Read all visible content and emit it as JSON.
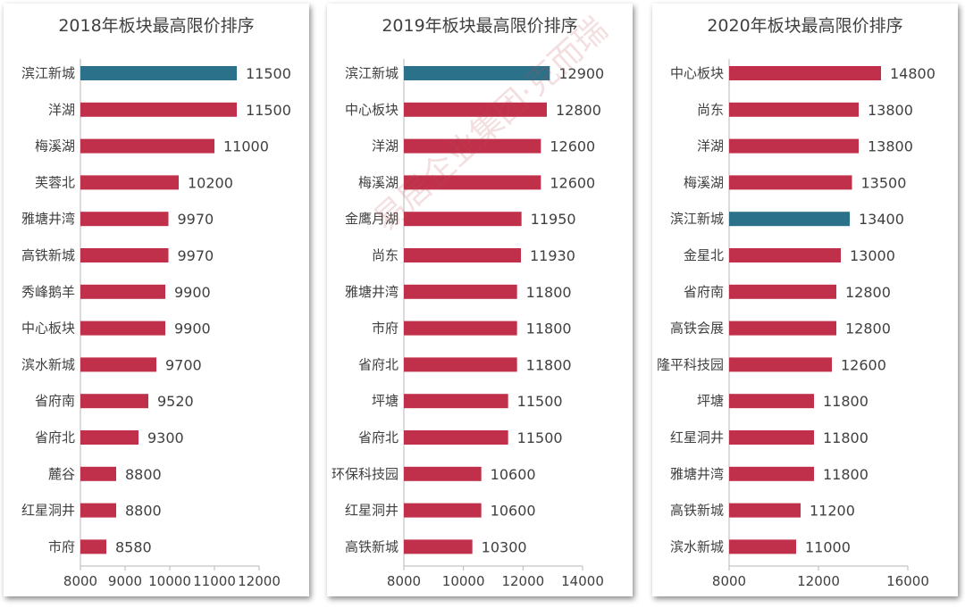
{
  "watermark": "易居企业集团·克而瑞",
  "colors": {
    "bar": "#c0304a",
    "highlight": "#2b7189",
    "axis": "#b7b7b7",
    "text": "#404040"
  },
  "chart_data": [
    {
      "type": "bar",
      "orientation": "horizontal",
      "title": "2018年板块最高限价排序",
      "categories": [
        "滨江新城",
        "洋湖",
        "梅溪湖",
        "芙蓉北",
        "雅塘井湾",
        "高铁新城",
        "秀峰鹅羊",
        "中心板块",
        "滨水新城",
        "省府南",
        "省府北",
        "麓谷",
        "红星洞井",
        "市府"
      ],
      "values": [
        11500,
        11500,
        11000,
        10200,
        9970,
        9970,
        9900,
        9900,
        9700,
        9520,
        9300,
        8800,
        8800,
        8580
      ],
      "highlight": [
        "滨江新城"
      ],
      "xlim": [
        8000,
        12000
      ],
      "xticks": [
        8000,
        9000,
        10000,
        11000,
        12000
      ]
    },
    {
      "type": "bar",
      "orientation": "horizontal",
      "title": "2019年板块最高限价排序",
      "categories": [
        "滨江新城",
        "中心板块",
        "洋湖",
        "梅溪湖",
        "金鹰月湖",
        "尚东",
        "雅塘井湾",
        "市府",
        "省府北",
        "坪塘",
        "省府北",
        "环保科技园",
        "红星洞井",
        "高铁新城"
      ],
      "values": [
        12900,
        12800,
        12600,
        12600,
        11950,
        11930,
        11800,
        11800,
        11800,
        11500,
        11500,
        10600,
        10600,
        10300
      ],
      "highlight": [
        "滨江新城"
      ],
      "xlim": [
        8000,
        14000
      ],
      "xticks": [
        8000,
        10000,
        12000,
        14000
      ]
    },
    {
      "type": "bar",
      "orientation": "horizontal",
      "title": "2020年板块最高限价排序",
      "categories": [
        "中心板块",
        "尚东",
        "洋湖",
        "梅溪湖",
        "滨江新城",
        "金星北",
        "省府南",
        "高铁会展",
        "隆平科技园",
        "坪塘",
        "红星洞井",
        "雅塘井湾",
        "高铁新城",
        "滨水新城"
      ],
      "values": [
        14800,
        13800,
        13800,
        13500,
        13400,
        13000,
        12800,
        12800,
        12600,
        11800,
        11800,
        11800,
        11200,
        11000
      ],
      "highlight": [
        "滨江新城"
      ],
      "xlim": [
        8000,
        16000
      ],
      "xticks": [
        8000,
        12000,
        16000
      ]
    }
  ]
}
